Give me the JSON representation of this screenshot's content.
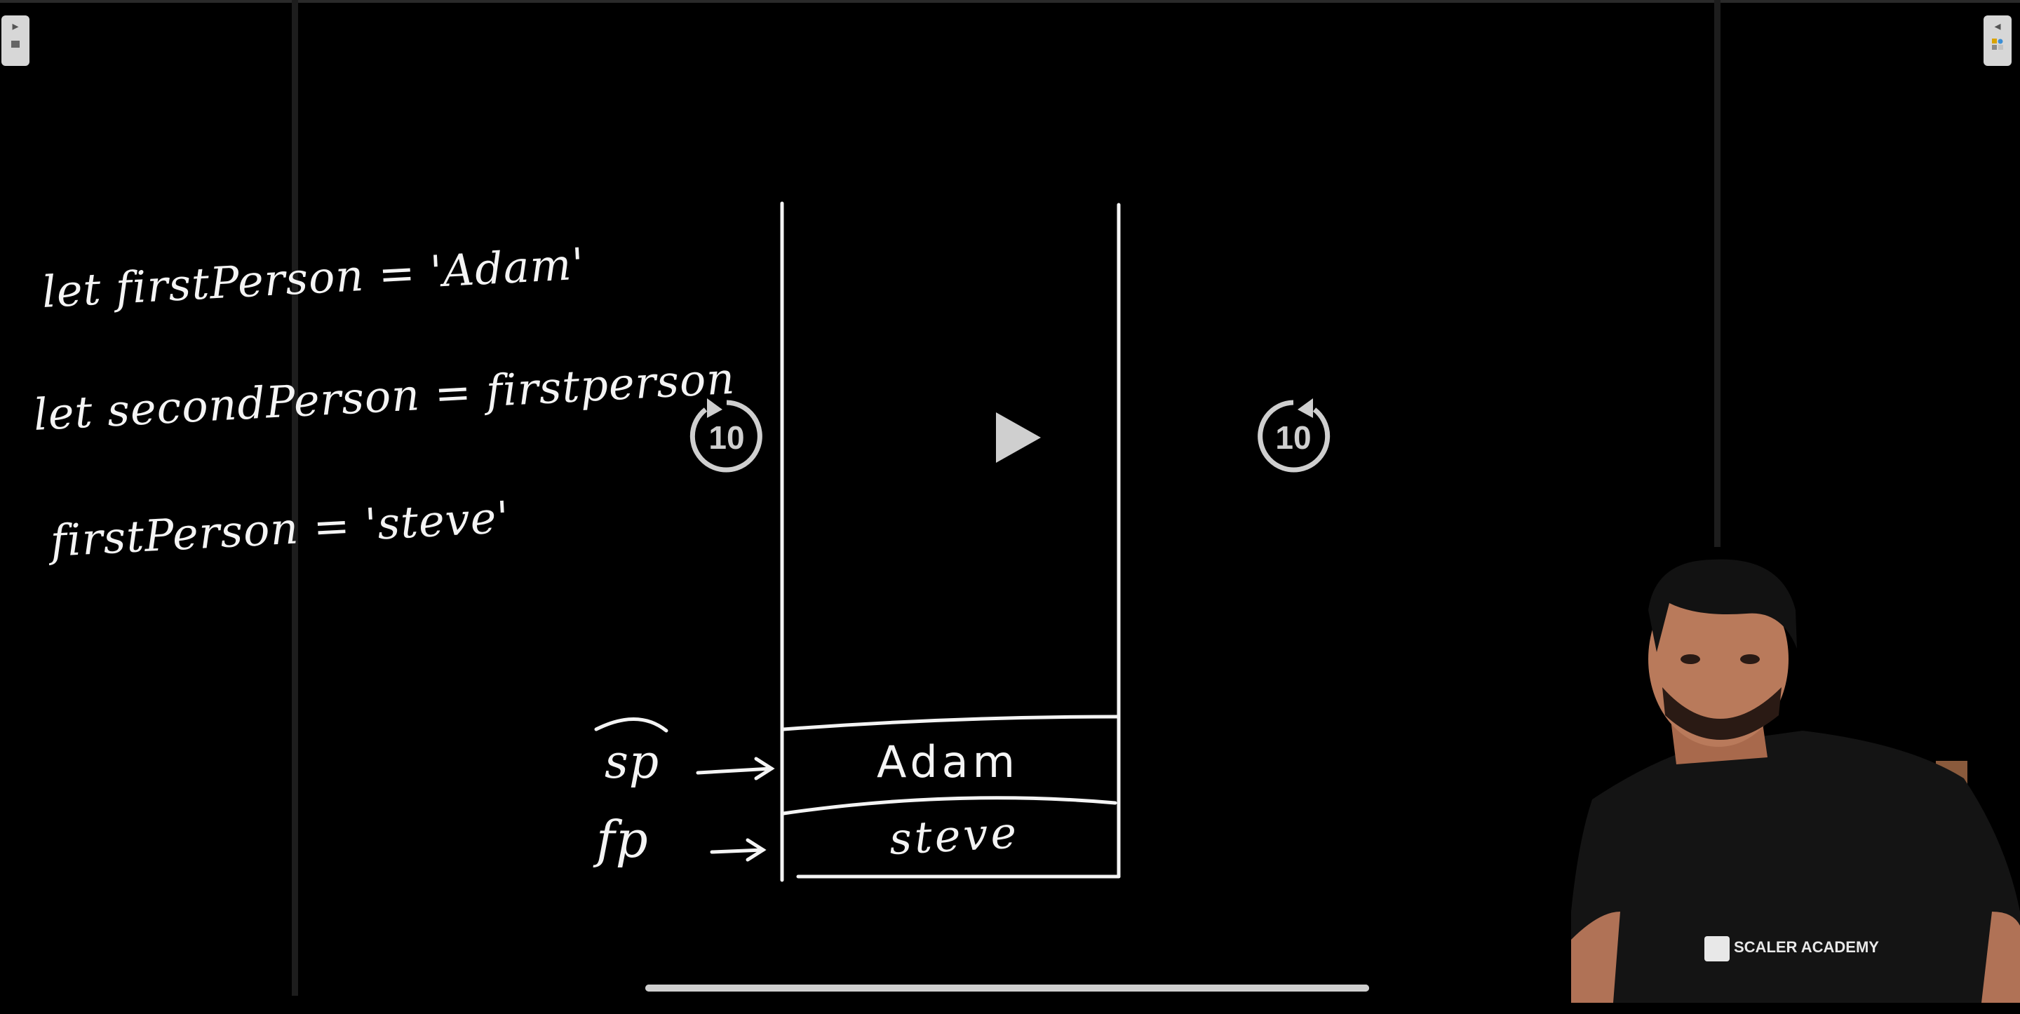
{
  "board": {
    "code_lines": [
      "let firstPerson = 'Adam'",
      "let secondPerson = firstperson",
      "firstPerson = 'steve'"
    ],
    "stack": {
      "cells": [
        "Adam",
        "steve"
      ],
      "pointers": [
        "sp",
        "fp"
      ]
    }
  },
  "player": {
    "rewind_seconds": "10",
    "forward_seconds": "10",
    "state": "paused",
    "progress_fraction": 1.0
  },
  "presenter": {
    "shirt_logo": "SCALER ACADEMY"
  },
  "icons": {
    "left_toggle": "sidebar-expand-icon",
    "right_toggle": "sidebar-collapse-icon",
    "rewind": "rewind-10-icon",
    "play": "play-icon",
    "forward": "forward-10-icon"
  },
  "colors": {
    "background": "#000000",
    "ink": "#f4f4f4",
    "controls": "#cfcfcf"
  }
}
